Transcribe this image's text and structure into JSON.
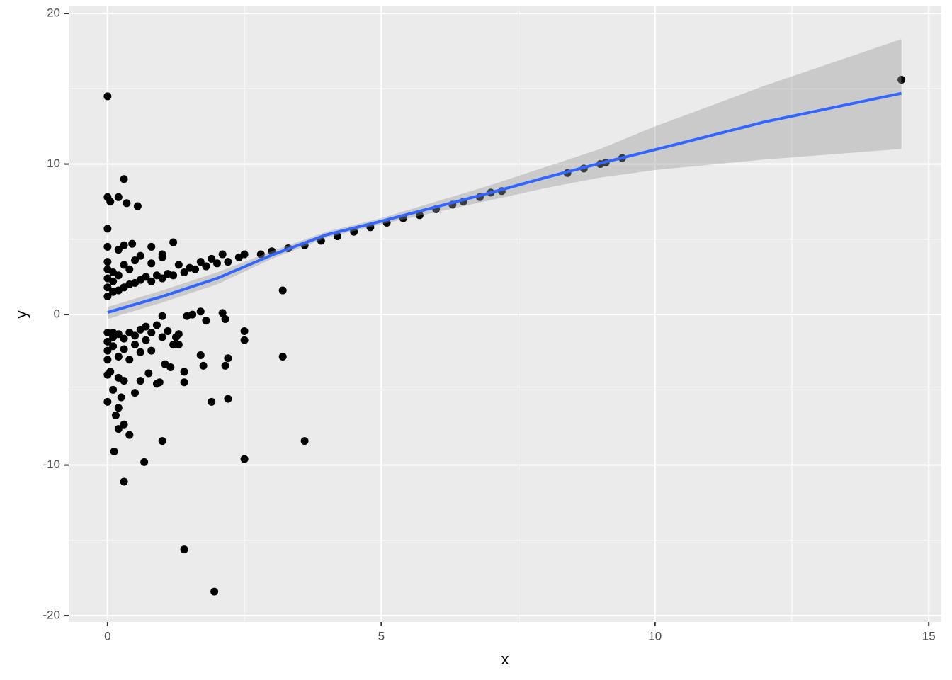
{
  "chart_data": {
    "type": "scatter",
    "x_label": "x",
    "y_label": "y",
    "xlim": [
      -0.71,
      15.23
    ],
    "ylim": [
      -20.42,
      20.52
    ],
    "xticks": [
      0,
      5,
      10,
      15
    ],
    "yticks": [
      -20,
      -10,
      0,
      10,
      20
    ],
    "x_minor_breaks": [
      2.5,
      7.5,
      12.5
    ],
    "y_minor_breaks": [
      -15,
      -5,
      5,
      15
    ],
    "grid": true,
    "panel_color": "#ebebeb",
    "points": {
      "color": "#000000",
      "x": [
        2.5,
        2.8,
        3.0,
        3.3,
        3.6,
        3.9,
        4.2,
        4.5,
        4.8,
        5.1,
        5.4,
        5.7,
        6.0,
        6.3,
        6.5,
        6.8,
        7.0,
        7.2,
        8.4,
        8.7,
        9.0,
        9.1,
        9.4,
        14.5,
        0,
        0,
        0,
        0,
        0,
        0.1,
        0.1,
        0.1,
        0.2,
        0.2,
        0.3,
        0.3,
        0.4,
        0.4,
        0.5,
        0.5,
        0.6,
        0.7,
        0.8,
        0.8,
        0.9,
        1.0,
        1.0,
        1.1,
        1.2,
        1.3,
        1.4,
        1.5,
        1.6,
        1.7,
        1.8,
        1.9,
        2.0,
        2.1,
        2.2,
        2.4,
        0.2,
        0.6,
        1.0,
        0,
        0,
        0,
        0,
        0,
        0.1,
        0.1,
        0.2,
        0.2,
        0.3,
        0.3,
        0.4,
        0.4,
        0.5,
        0.5,
        0.6,
        0.6,
        0.7,
        0.7,
        0.8,
        0.8,
        0.9,
        1.0,
        1.1,
        1.2,
        1.3,
        0,
        0,
        0.05,
        0.2,
        0.3,
        0.35,
        0.55,
        0,
        0.3,
        0.45,
        0.8,
        1.2,
        3.2,
        3.2,
        0,
        0.1,
        0.15,
        0.2,
        0.25,
        0.3,
        0.2,
        0.4,
        0.12,
        0.3,
        0.67,
        1.0,
        1.9,
        2.5,
        3.6,
        1.4,
        1.95,
        1.7,
        1.75,
        2.15,
        2.2,
        2.2,
        2.5,
        2.5,
        2.1,
        2.15,
        1.7,
        1.8,
        1.45,
        1.55,
        1.4,
        1.4,
        0.95,
        0.9,
        0.75,
        0.6,
        0.5,
        0.3,
        0.2,
        0,
        0.05,
        1.05,
        1.15,
        1.3,
        1.25,
        1.0,
        0.1
      ],
      "values": [
        4.0,
        4.0,
        4.2,
        4.4,
        4.6,
        4.9,
        5.2,
        5.5,
        5.8,
        6.1,
        6.4,
        6.6,
        7.0,
        7.3,
        7.5,
        7.8,
        8.1,
        8.2,
        9.4,
        9.7,
        10.0,
        10.1,
        10.4,
        15.6,
        1.2,
        1.8,
        2.4,
        3.0,
        3.5,
        1.5,
        2.2,
        2.8,
        1.6,
        2.6,
        1.8,
        3.3,
        2.0,
        3.0,
        2.1,
        3.6,
        2.3,
        2.5,
        2.2,
        3.4,
        2.6,
        2.4,
        3.8,
        2.7,
        2.6,
        3.3,
        2.8,
        3.1,
        3.0,
        3.5,
        3.2,
        3.7,
        3.4,
        4.0,
        3.5,
        3.8,
        4.3,
        3.9,
        4.0,
        4.5,
        -1.2,
        -1.8,
        -2.4,
        -3.0,
        -1.5,
        -2.1,
        -1.3,
        -2.8,
        -1.6,
        -2.3,
        -1.2,
        -3.0,
        -1.4,
        -2.0,
        -1.0,
        -2.5,
        -0.8,
        -1.7,
        -1.2,
        -2.4,
        -0.7,
        -1.5,
        -1.1,
        -2.0,
        -1.3,
        14.5,
        7.8,
        7.5,
        7.8,
        9.0,
        7.4,
        7.2,
        5.7,
        4.6,
        4.7,
        4.5,
        4.8,
        1.6,
        -2.8,
        -5.8,
        -5.0,
        -6.7,
        -6.2,
        -5.5,
        -7.3,
        -7.6,
        -8.0,
        -9.1,
        -11.1,
        -9.8,
        -8.4,
        -5.8,
        -9.6,
        -8.4,
        -15.6,
        -18.4,
        -2.7,
        -3.4,
        -3.4,
        -2.9,
        -5.6,
        -1.1,
        -1.7,
        0.1,
        -0.3,
        0.2,
        -0.4,
        -0.1,
        0,
        -3.8,
        -4.5,
        -4.5,
        -4.6,
        -3.9,
        -4.4,
        -5.2,
        -4.4,
        -4.2,
        -4.0,
        -3.8,
        -3.3,
        -3.5,
        -2.0,
        -1.5,
        -0.1,
        -1.2
      ]
    },
    "smooth": {
      "color": "#3366ff",
      "band_color": "#999999",
      "x": [
        0,
        1,
        2,
        3,
        4,
        5,
        6,
        7,
        8,
        9,
        10,
        12,
        14.5
      ],
      "values": [
        0.14,
        1.2,
        2.4,
        3.95,
        5.3,
        6.2,
        7.15,
        8.1,
        9.1,
        10.05,
        10.95,
        12.8,
        14.7
      ],
      "lower": [
        -0.3,
        0.8,
        2.0,
        3.7,
        5.1,
        6.0,
        6.8,
        7.6,
        8.4,
        9.1,
        9.6,
        10.3,
        11.0
      ],
      "upper": [
        0.5,
        1.6,
        2.8,
        4.2,
        5.5,
        6.4,
        7.5,
        8.6,
        9.8,
        11.0,
        12.5,
        15.2,
        18.3
      ]
    }
  }
}
